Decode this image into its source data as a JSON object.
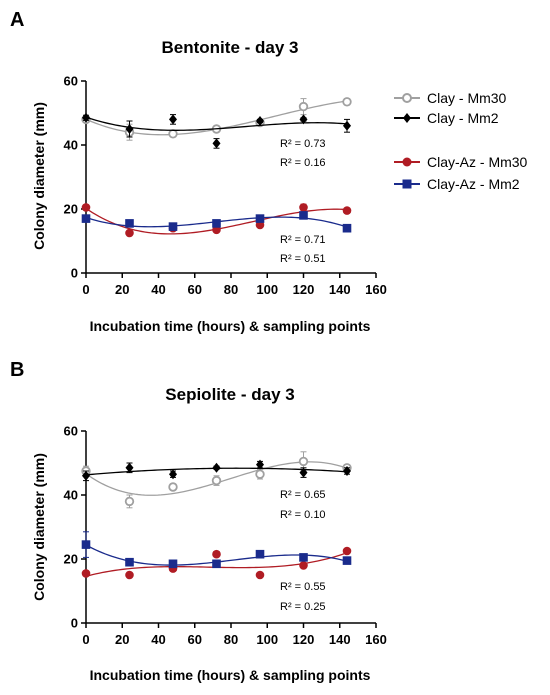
{
  "chart_data": [
    {
      "type": "scatter",
      "panel_letter": "A",
      "title": "Bentonite - day 3",
      "xlabel": "Incubation time (hours) & sampling  points",
      "ylabel": "Colony diameter (mm)",
      "xlim": [
        0,
        160
      ],
      "ylim": [
        0,
        60
      ],
      "xticks": [
        0,
        20,
        40,
        60,
        80,
        100,
        120,
        140,
        160
      ],
      "yticks": [
        0,
        20,
        40,
        60
      ],
      "grid": false,
      "legend_position": "right",
      "series": [
        {
          "name": "Clay - Mm30",
          "marker": "open-circle",
          "color": "#a0a0a0",
          "x": [
            0,
            24,
            48,
            72,
            96,
            120,
            144
          ],
          "y": [
            48,
            44,
            43.5,
            45,
            47,
            52,
            53.5
          ],
          "err": [
            0.6,
            2.5,
            1.0,
            1.0,
            0.8,
            2.5,
            1.0
          ]
        },
        {
          "name": "Clay - Mm2",
          "marker": "diamond",
          "color": "#000000",
          "x": [
            0,
            24,
            48,
            72,
            96,
            120,
            144
          ],
          "y": [
            48.5,
            45,
            48,
            40.5,
            47.5,
            48,
            46
          ],
          "err": [
            0.8,
            2.5,
            1.5,
            1.5,
            0.5,
            0.5,
            2.0
          ]
        },
        {
          "name": "Clay-Az - Mm30",
          "marker": "circle",
          "color": "#b01c24",
          "x": [
            0,
            24,
            48,
            72,
            96,
            120,
            144
          ],
          "y": [
            20.5,
            12.5,
            14,
            13.5,
            15,
            20.5,
            19.5
          ],
          "err": [
            0.8,
            0.5,
            0.5,
            0.5,
            0.5,
            1.0,
            0.5
          ]
        },
        {
          "name": "Clay-Az - Mm2",
          "marker": "square",
          "color": "#1a2b8c",
          "x": [
            0,
            24,
            48,
            72,
            96,
            120,
            144
          ],
          "y": [
            17,
            15.5,
            14.5,
            15.5,
            17,
            18,
            14
          ],
          "err": [
            0.8,
            0.5,
            0.5,
            0.5,
            0.5,
            0.5,
            0.5
          ]
        }
      ],
      "annotations": [
        {
          "text": "R² = 0.73",
          "series": "Clay - Mm30"
        },
        {
          "text": "R² = 0.16",
          "series": "Clay - Mm2"
        },
        {
          "text": "R² = 0.71",
          "series": "Clay-Az - Mm30"
        },
        {
          "text": "R² = 0.51",
          "series": "Clay-Az - Mm2"
        }
      ]
    },
    {
      "type": "scatter",
      "panel_letter": "B",
      "title": "Sepiolite - day 3",
      "xlabel": "Incubation time (hours) & sampling points",
      "ylabel": "Colony diameter (mm)",
      "xlim": [
        0,
        160
      ],
      "ylim": [
        0,
        60
      ],
      "xticks": [
        0,
        20,
        40,
        60,
        80,
        100,
        120,
        140,
        160
      ],
      "yticks": [
        0,
        20,
        40,
        60
      ],
      "grid": false,
      "series": [
        {
          "name": "Clay - Mm30",
          "marker": "open-circle",
          "color": "#a0a0a0",
          "x": [
            0,
            24,
            48,
            72,
            96,
            120,
            144
          ],
          "y": [
            47.5,
            38,
            42.5,
            44.5,
            46.5,
            50.5,
            48.5
          ],
          "err": [
            1.5,
            2.0,
            1.0,
            1.5,
            1.5,
            3.0,
            1.0
          ]
        },
        {
          "name": "Clay - Mm2",
          "marker": "diamond",
          "color": "#000000",
          "x": [
            0,
            24,
            48,
            72,
            96,
            120,
            144
          ],
          "y": [
            46,
            48.5,
            46.5,
            48.5,
            49.5,
            47,
            47.5
          ],
          "err": [
            1.5,
            1.5,
            1.0,
            0.5,
            1.0,
            1.5,
            1.0
          ]
        },
        {
          "name": "Clay-Az - Mm30",
          "marker": "circle",
          "color": "#b01c24",
          "x": [
            0,
            24,
            48,
            72,
            96,
            120,
            144
          ],
          "y": [
            15.5,
            15,
            17,
            21.5,
            15,
            18,
            22.5
          ],
          "err": [
            0.8,
            0.5,
            0.5,
            0.5,
            0.5,
            0.5,
            0.5
          ]
        },
        {
          "name": "Clay-Az - Mm2",
          "marker": "square",
          "color": "#1a2b8c",
          "x": [
            0,
            24,
            48,
            72,
            96,
            120,
            144
          ],
          "y": [
            24.5,
            19,
            18.5,
            18.5,
            21.5,
            20.5,
            19.5
          ],
          "err": [
            4.0,
            0.5,
            0.5,
            0.5,
            0.5,
            0.5,
            0.5
          ]
        }
      ],
      "annotations": [
        {
          "text": "R² = 0.65",
          "series": "Clay - Mm30"
        },
        {
          "text": "R² = 0.10",
          "series": "Clay - Mm2"
        },
        {
          "text": "R² = 0.55",
          "series": "Clay-Az - Mm30"
        },
        {
          "text": "R² = 0.25",
          "series": "Clay-Az - Mm2"
        }
      ]
    }
  ]
}
